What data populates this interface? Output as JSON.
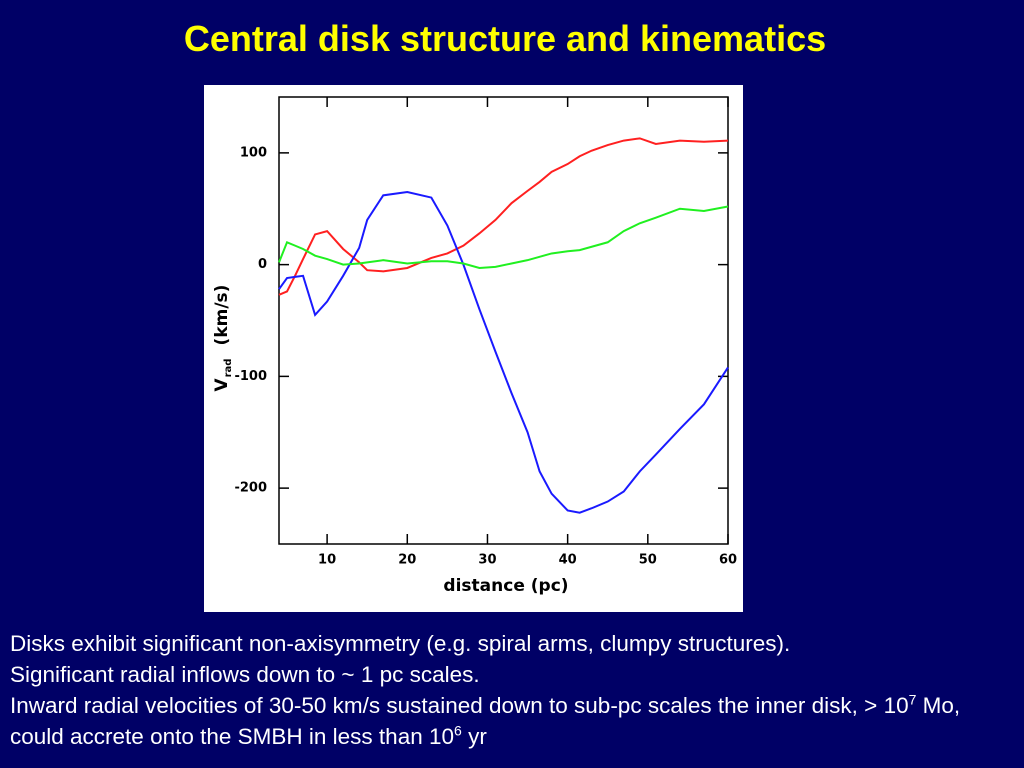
{
  "title": "Central disk structure and kinematics",
  "chart_data": {
    "type": "line",
    "xlabel": "distance (pc)",
    "ylabel": {
      "symbol": "V",
      "subscript": "rad",
      "unit": "(km/s)"
    },
    "x": [
      4,
      5,
      6,
      7,
      8.5,
      10,
      12,
      14,
      15,
      17,
      20,
      23,
      25,
      27,
      29,
      31,
      33,
      35,
      36.5,
      38,
      40,
      41.5,
      43,
      45,
      47,
      49,
      51,
      54,
      57,
      60
    ],
    "series": [
      {
        "color": "#ff2020",
        "values": [
          -27,
          -24,
          -10,
          5,
          27,
          30,
          14,
          2,
          -5,
          -6,
          -3,
          6,
          10,
          17,
          28,
          40,
          55,
          66,
          74,
          83,
          90,
          97,
          102,
          107,
          111,
          113,
          108,
          111,
          110,
          111
        ]
      },
      {
        "color": "#1a1aff",
        "values": [
          -22,
          -12,
          -11,
          -10,
          -45,
          -33,
          -10,
          15,
          40,
          62,
          65,
          60,
          35,
          0,
          -40,
          -78,
          -115,
          -150,
          -185,
          -205,
          -220,
          -222,
          -218,
          -212,
          -203,
          -185,
          -170,
          -147,
          -125,
          -92
        ]
      },
      {
        "color": "#20f020",
        "values": [
          2,
          20,
          17,
          14,
          8,
          5,
          0,
          1,
          2,
          4,
          1,
          3,
          3,
          1,
          -3,
          -2,
          1,
          4,
          7,
          10,
          12,
          13,
          16,
          20,
          30,
          37,
          42,
          50,
          48,
          52
        ]
      }
    ],
    "xlim": [
      4,
      60
    ],
    "ylim": [
      -250,
      150
    ],
    "xticks": [
      10,
      20,
      30,
      40,
      50,
      60
    ],
    "yticks": [
      -200,
      -100,
      0,
      100
    ]
  },
  "body": [
    "Disks exhibit significant non-axisymmetry (e.g. spiral arms, clumpy structures).",
    "Significant radial inflows down to ~ 1 pc scales.",
    [
      "Inward radial velocities of 30-50 km/s sustained down to sub-pc scales the inner disk, > 10",
      "7",
      " Mo, could accrete onto the SMBH in less than 10",
      "6",
      " yr"
    ]
  ]
}
